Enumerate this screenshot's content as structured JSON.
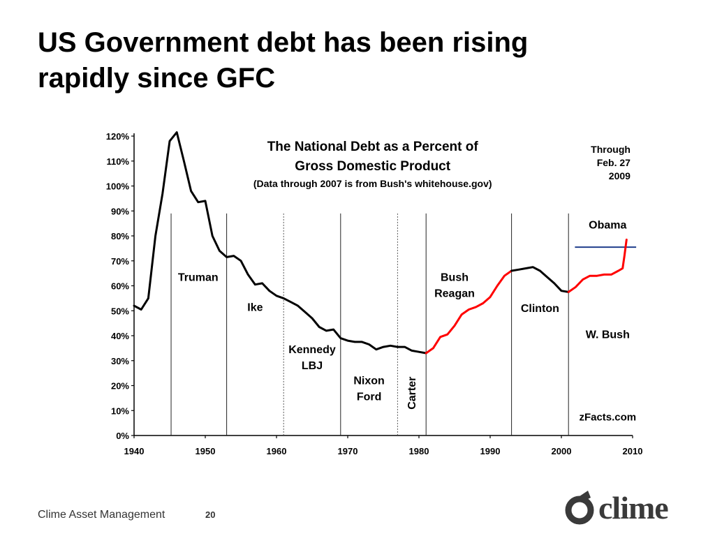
{
  "slide": {
    "title_line1": "US Government debt has been rising",
    "title_line2": "rapidly since GFC"
  },
  "footer": {
    "company": "Clime Asset Management",
    "page_number": "20"
  },
  "logo": {
    "text": "clime",
    "color": "#3a3a3a"
  },
  "chart_data": {
    "type": "line",
    "title_lines": [
      "The National Debt as a Percent of",
      "Gross Domestic Product"
    ],
    "subtitle": "(Data through 2007 is from Bush's whitehouse.gov)",
    "annotation_lines": [
      "Through",
      "Feb. 27",
      "2009"
    ],
    "source": "zFacts.com",
    "xlim": [
      1940,
      2010
    ],
    "ylim": [
      0,
      120
    ],
    "x_ticks": [
      1940,
      1950,
      1960,
      1970,
      1980,
      1990,
      2000,
      2010
    ],
    "y_ticks": [
      {
        "value": 0,
        "label": "0%"
      },
      {
        "value": 10,
        "label": "10%"
      },
      {
        "value": 20,
        "label": "20%"
      },
      {
        "value": 30,
        "label": "30%"
      },
      {
        "value": 40,
        "label": "40%"
      },
      {
        "value": 50,
        "label": "50%"
      },
      {
        "value": 60,
        "label": "60%"
      },
      {
        "value": 70,
        "label": "70%"
      },
      {
        "value": 80,
        "label": "80%"
      },
      {
        "value": 90,
        "label": "90%"
      },
      {
        "value": 100,
        "label": "100%"
      },
      {
        "value": 110,
        "label": "110%"
      },
      {
        "value": 120,
        "label": "120%"
      }
    ],
    "grid": false,
    "colors": {
      "democrat_line": "#000000",
      "republican_line": "#ff0000",
      "reference_line": "#1f3d8c"
    },
    "series": [
      {
        "party": "democrat",
        "x": [
          1940,
          1941,
          1942,
          1943,
          1944,
          1945,
          1946,
          1947,
          1948,
          1949,
          1950,
          1951,
          1952,
          1953,
          1954,
          1955,
          1956,
          1957,
          1958,
          1959,
          1960,
          1961,
          1962,
          1963,
          1964,
          1965,
          1966,
          1967,
          1968,
          1969,
          1970,
          1971,
          1972,
          1973,
          1974,
          1975,
          1976,
          1977,
          1978,
          1979,
          1980,
          1981
        ],
        "y": [
          52,
          50.5,
          55,
          80,
          97,
          118,
          121.5,
          110,
          98,
          93.5,
          94,
          80,
          74,
          71.5,
          72,
          70,
          64.5,
          60.5,
          61,
          58,
          56,
          55,
          53.5,
          52,
          49.5,
          47,
          43.5,
          42,
          42.5,
          39,
          38,
          37.5,
          37.5,
          36.5,
          34.5,
          35.5,
          36,
          35.5,
          35.5,
          34,
          33.5,
          33
        ]
      },
      {
        "party": "republican",
        "x": [
          1981,
          1982,
          1983,
          1984,
          1985,
          1986,
          1987,
          1988,
          1989,
          1990,
          1991,
          1992,
          1993
        ],
        "y": [
          33,
          35,
          39.5,
          40.5,
          44,
          48.5,
          50.5,
          51.5,
          53,
          55.5,
          60,
          64,
          66
        ]
      },
      {
        "party": "democrat",
        "x": [
          1993,
          1994,
          1995,
          1996,
          1997,
          1998,
          1999,
          2000,
          2001
        ],
        "y": [
          66,
          66.5,
          67,
          67.5,
          66,
          63.5,
          61,
          58,
          57.5
        ]
      },
      {
        "party": "republican",
        "x": [
          2001,
          2002,
          2003,
          2004,
          2005,
          2006,
          2007,
          2008,
          2008.6,
          2008.85,
          2009.15
        ],
        "y": [
          57.5,
          59.5,
          62.5,
          64,
          64,
          64.5,
          64.5,
          66,
          67,
          72,
          78.5
        ]
      }
    ],
    "reference_line": {
      "x": [
        2001.9,
        2010.5
      ],
      "y": 75.5
    },
    "divider_years": [
      {
        "x": 1945.2,
        "style": "solid"
      },
      {
        "x": 1953.0,
        "style": "solid"
      },
      {
        "x": 1961.0,
        "style": "dotted"
      },
      {
        "x": 1969.0,
        "style": "solid"
      },
      {
        "x": 1977.0,
        "style": "dotted"
      },
      {
        "x": 1981.0,
        "style": "solid"
      },
      {
        "x": 1993.0,
        "style": "solid"
      },
      {
        "x": 2001.0,
        "style": "solid"
      }
    ],
    "presidents": [
      {
        "name": "truman",
        "lines": [
          "Truman"
        ],
        "x": 1949,
        "y": 62,
        "rotate": false
      },
      {
        "name": "ike",
        "lines": [
          "Ike"
        ],
        "x": 1957,
        "y": 50,
        "rotate": false
      },
      {
        "name": "kennedy-lbj",
        "lines": [
          "Kennedy",
          "LBJ"
        ],
        "x": 1965,
        "y": 33,
        "rotate": false
      },
      {
        "name": "nixon-ford",
        "lines": [
          "Nixon",
          "Ford"
        ],
        "x": 1973,
        "y": 20.5,
        "rotate": false
      },
      {
        "name": "carter",
        "lines": [
          "Carter"
        ],
        "x": 1979,
        "y": 17,
        "rotate": true
      },
      {
        "name": "bush-reagan",
        "lines": [
          "Bush",
          "Reagan"
        ],
        "x": 1985,
        "y": 62,
        "rotate": false
      },
      {
        "name": "clinton",
        "lines": [
          "Clinton"
        ],
        "x": 1997,
        "y": 49.5,
        "rotate": false
      },
      {
        "name": "w-bush",
        "lines": [
          "W. Bush"
        ],
        "x": 2006.5,
        "y": 39,
        "rotate": false
      },
      {
        "name": "obama",
        "lines": [
          "Obama"
        ],
        "x": 2006.5,
        "y": 83,
        "rotate": false
      }
    ]
  }
}
